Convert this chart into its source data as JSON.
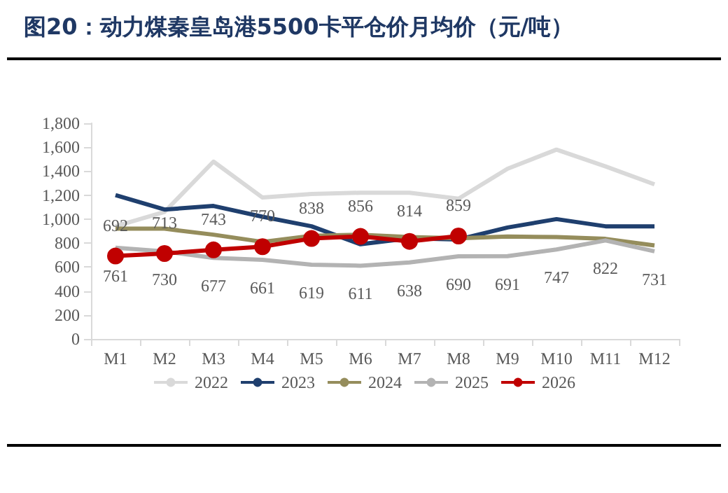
{
  "chart_data": {
    "type": "line",
    "title": "图20：动力煤秦皇岛港5500卡平仓价月均价（元/吨）",
    "categories": [
      "M1",
      "M2",
      "M3",
      "M4",
      "M5",
      "M6",
      "M7",
      "M8",
      "M9",
      "M10",
      "M11",
      "M12"
    ],
    "series": [
      {
        "name": "2022",
        "color": "#d9d9d9",
        "marker": "none",
        "values": [
          940,
          1060,
          1480,
          1180,
          1210,
          1220,
          1220,
          1170,
          1420,
          1580,
          1440,
          1290
        ]
      },
      {
        "name": "2023",
        "color": "#1f3f6e",
        "marker": "none",
        "values": [
          1200,
          1080,
          1110,
          1020,
          940,
          790,
          840,
          830,
          930,
          1000,
          940,
          940
        ]
      },
      {
        "name": "2024",
        "color": "#958d5c",
        "marker": "none",
        "values": [
          920,
          920,
          870,
          810,
          860,
          870,
          850,
          840,
          855,
          850,
          835,
          780
        ]
      },
      {
        "name": "2025",
        "color": "#b3b3b3",
        "marker": "none",
        "values": [
          761,
          730,
          677,
          661,
          619,
          611,
          638,
          690,
          691,
          747,
          822,
          731
        ],
        "value_labels": [
          "761",
          "730",
          "677",
          "661",
          "619",
          "611",
          "638",
          "690",
          "691",
          "747",
          "822",
          "731"
        ]
      },
      {
        "name": "2026",
        "color": "#c00000",
        "marker": "circle",
        "values": [
          692,
          713,
          743,
          770,
          838,
          856,
          814,
          859,
          null,
          null,
          null,
          null
        ],
        "value_labels": [
          "692",
          "713",
          "743",
          "770",
          "838",
          "856",
          "814",
          "859",
          null,
          null,
          null,
          null
        ]
      }
    ],
    "ylim": [
      0,
      1800
    ],
    "yticks": [
      0,
      200,
      400,
      600,
      800,
      {
        "value": 1000,
        "label": "1,000"
      },
      {
        "value": 1200,
        "label": "1,200"
      },
      {
        "value": 1400,
        "label": "1,400"
      },
      {
        "value": 1600,
        "label": "1,600"
      },
      {
        "value": 1800,
        "label": "1,800"
      }
    ],
    "grid": false,
    "legend": "bottom",
    "line_style": "solid"
  }
}
